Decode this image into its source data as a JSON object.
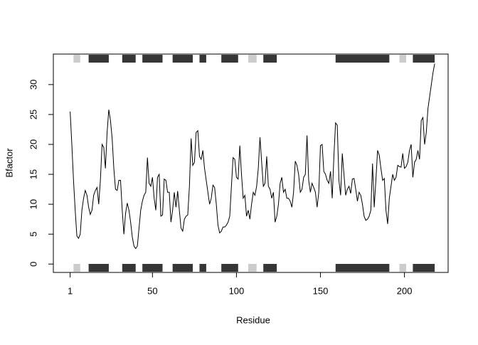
{
  "chart_data": {
    "type": "line",
    "xlabel": "Residue",
    "ylabel": "Bfactor",
    "x": [
      1,
      2,
      3,
      4,
      5,
      6,
      7,
      8,
      9,
      10,
      11,
      12,
      13,
      14,
      15,
      16,
      17,
      18,
      19,
      20,
      21,
      22,
      23,
      24,
      25,
      26,
      27,
      28,
      29,
      30,
      31,
      32,
      33,
      34,
      35,
      36,
      37,
      38,
      39,
      40,
      41,
      42,
      43,
      44,
      45,
      46,
      47,
      48,
      49,
      50,
      51,
      52,
      53,
      54,
      55,
      56,
      57,
      58,
      59,
      60,
      61,
      62,
      63,
      64,
      65,
      66,
      67,
      68,
      69,
      70,
      71,
      72,
      73,
      74,
      75,
      76,
      77,
      78,
      79,
      80,
      81,
      82,
      83,
      84,
      85,
      86,
      87,
      88,
      89,
      90,
      91,
      92,
      93,
      94,
      95,
      96,
      97,
      98,
      99,
      100,
      101,
      102,
      103,
      104,
      105,
      106,
      107,
      108,
      109,
      110,
      111,
      112,
      113,
      114,
      115,
      116,
      117,
      118,
      119,
      120,
      121,
      122,
      123,
      124,
      125,
      126,
      127,
      128,
      129,
      130,
      131,
      132,
      133,
      134,
      135,
      136,
      137,
      138,
      139,
      140,
      141,
      142,
      143,
      144,
      145,
      146,
      147,
      148,
      149,
      150,
      151,
      152,
      153,
      154,
      155,
      156,
      157,
      158,
      159,
      160,
      161,
      162,
      163,
      164,
      165,
      166,
      167,
      168,
      169,
      170,
      171,
      172,
      173,
      174,
      175,
      176,
      177,
      178,
      179,
      180,
      181,
      182,
      183,
      184,
      185,
      186,
      187,
      188,
      189,
      190,
      191,
      192,
      193,
      194,
      195,
      196,
      197,
      198,
      199,
      200,
      201,
      202,
      203,
      204,
      205,
      206,
      207,
      208,
      209,
      210,
      211,
      212,
      213,
      214,
      215,
      216,
      217,
      218
    ],
    "values": [
      25.5,
      20,
      14,
      9,
      4.7,
      4.3,
      5,
      9,
      11,
      12.3,
      11.5,
      9.5,
      8.3,
      9,
      11.5,
      12.3,
      12.8,
      10,
      14,
      20,
      19.5,
      16,
      22,
      25.8,
      24,
      21,
      16,
      12.5,
      12.3,
      14,
      14,
      9,
      5,
      8.5,
      10.2,
      9,
      7,
      4.5,
      3,
      2.6,
      3,
      6,
      9,
      10.5,
      11.5,
      12,
      17.8,
      13.5,
      13,
      14.5,
      11,
      9,
      14.5,
      15,
      8,
      8.2,
      14.2,
      14,
      12,
      12,
      7,
      9,
      12,
      9.5,
      12.2,
      9,
      6,
      5.5,
      7.5,
      8,
      8.2,
      13,
      21,
      16.5,
      17,
      22,
      22.3,
      18,
      17.5,
      19,
      16,
      14,
      12,
      10,
      11,
      13.2,
      12.8,
      10,
      6.5,
      5.2,
      5.5,
      6.2,
      6.2,
      6.5,
      7,
      8,
      13,
      17.8,
      17.5,
      14.5,
      14.2,
      19.8,
      15,
      11,
      11.5,
      8,
      9,
      7.5,
      10,
      12,
      11.5,
      13,
      16,
      21.2,
      17,
      13,
      13.5,
      18,
      13,
      12.5,
      11,
      12,
      7,
      8,
      10,
      13.5,
      14.5,
      12,
      12.5,
      11,
      11,
      10.5,
      9.5,
      12,
      17.2,
      16.5,
      15,
      12,
      12.5,
      14.5,
      15,
      21.5,
      14,
      12,
      13.5,
      12.8,
      12,
      9.5,
      12,
      19.8,
      20,
      15.5,
      15,
      14,
      13.5,
      15.5,
      11,
      18,
      23.6,
      23.2,
      14,
      11.5,
      18.5,
      15,
      11.5,
      12.5,
      13,
      11.8,
      14.2,
      14.3,
      12.5,
      10.5,
      12,
      11.5,
      10,
      8,
      7.3,
      7.5,
      8,
      9,
      16.8,
      9.5,
      14,
      19,
      18.2,
      16,
      14,
      14.3,
      9,
      6.7,
      11,
      13,
      15,
      14,
      14.5,
      16.5,
      16.3,
      16.2,
      18.5,
      16,
      16.3,
      17,
      19,
      20,
      14.5,
      17,
      17.5,
      19,
      17.5,
      24,
      24.5,
      20,
      22,
      26,
      28,
      30,
      32,
      33.5
    ],
    "color": "#000000",
    "xlim": [
      -9,
      226
    ],
    "ylim": [
      -1.4,
      35.1
    ],
    "xticks": [
      1,
      50,
      100,
      150,
      200
    ],
    "yticks": [
      0,
      5,
      10,
      15,
      20,
      25,
      30
    ],
    "sse": [
      {
        "start": 3,
        "end": 7,
        "color": "#cccccc"
      },
      {
        "start": 12,
        "end": 24,
        "color": "#363636"
      },
      {
        "start": 32,
        "end": 40,
        "color": "#363636"
      },
      {
        "start": 44,
        "end": 56,
        "color": "#363636"
      },
      {
        "start": 62,
        "end": 74,
        "color": "#363636"
      },
      {
        "start": 78,
        "end": 82,
        "color": "#363636"
      },
      {
        "start": 91,
        "end": 101,
        "color": "#363636"
      },
      {
        "start": 107,
        "end": 112,
        "color": "#cccccc"
      },
      {
        "start": 116,
        "end": 124,
        "color": "#363636"
      },
      {
        "start": 159,
        "end": 191,
        "color": "#363636"
      },
      {
        "start": 197,
        "end": 201,
        "color": "#cccccc"
      },
      {
        "start": 205,
        "end": 218,
        "color": "#363636"
      }
    ]
  }
}
